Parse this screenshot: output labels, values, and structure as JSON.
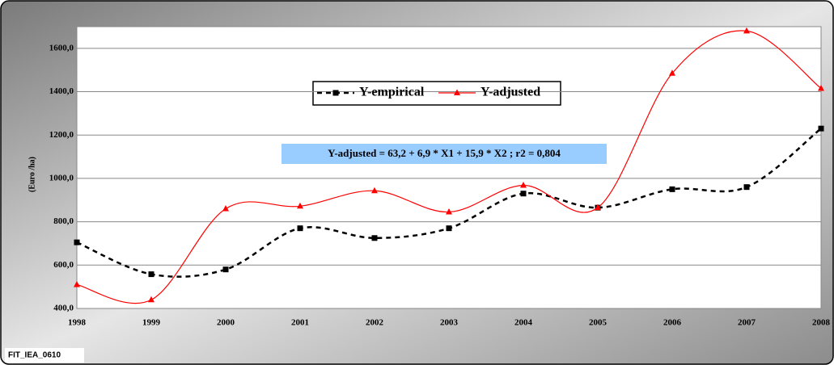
{
  "chart_data": {
    "type": "line",
    "y_label": "(Euro /ha)",
    "equation": "Y-adjusted = 63,2 + 6,9 * X1 + 15,9 * X2 ;  r2 = 0,804",
    "footer": "FIT_IEA_0610",
    "categories": [
      "1998",
      "1999",
      "2000",
      "2001",
      "2002",
      "2003",
      "2004",
      "2005",
      "2006",
      "2007",
      "2008"
    ],
    "series": [
      {
        "name": "Y-empirical",
        "color": "#000000",
        "dashed": true,
        "marker": "square",
        "values": [
          705,
          558,
          580,
          770,
          725,
          770,
          930,
          865,
          950,
          960,
          1230
        ]
      },
      {
        "name": "Y-adjusted",
        "color": "#ff0000",
        "dashed": false,
        "marker": "triangle",
        "values": [
          510,
          440,
          860,
          872,
          943,
          845,
          968,
          865,
          1485,
          1680,
          1415
        ]
      }
    ],
    "ylim": [
      400,
      1700
    ],
    "yticks": [
      {
        "value": 400,
        "label": "400,0"
      },
      {
        "value": 600,
        "label": "600,0"
      },
      {
        "value": 800,
        "label": "800,0"
      },
      {
        "value": 1000,
        "label": "1000,0"
      },
      {
        "value": 1200,
        "label": "1200,0"
      },
      {
        "value": 1400,
        "label": "1400,0"
      },
      {
        "value": 1600,
        "label": "1600,0"
      }
    ],
    "grid": true
  }
}
